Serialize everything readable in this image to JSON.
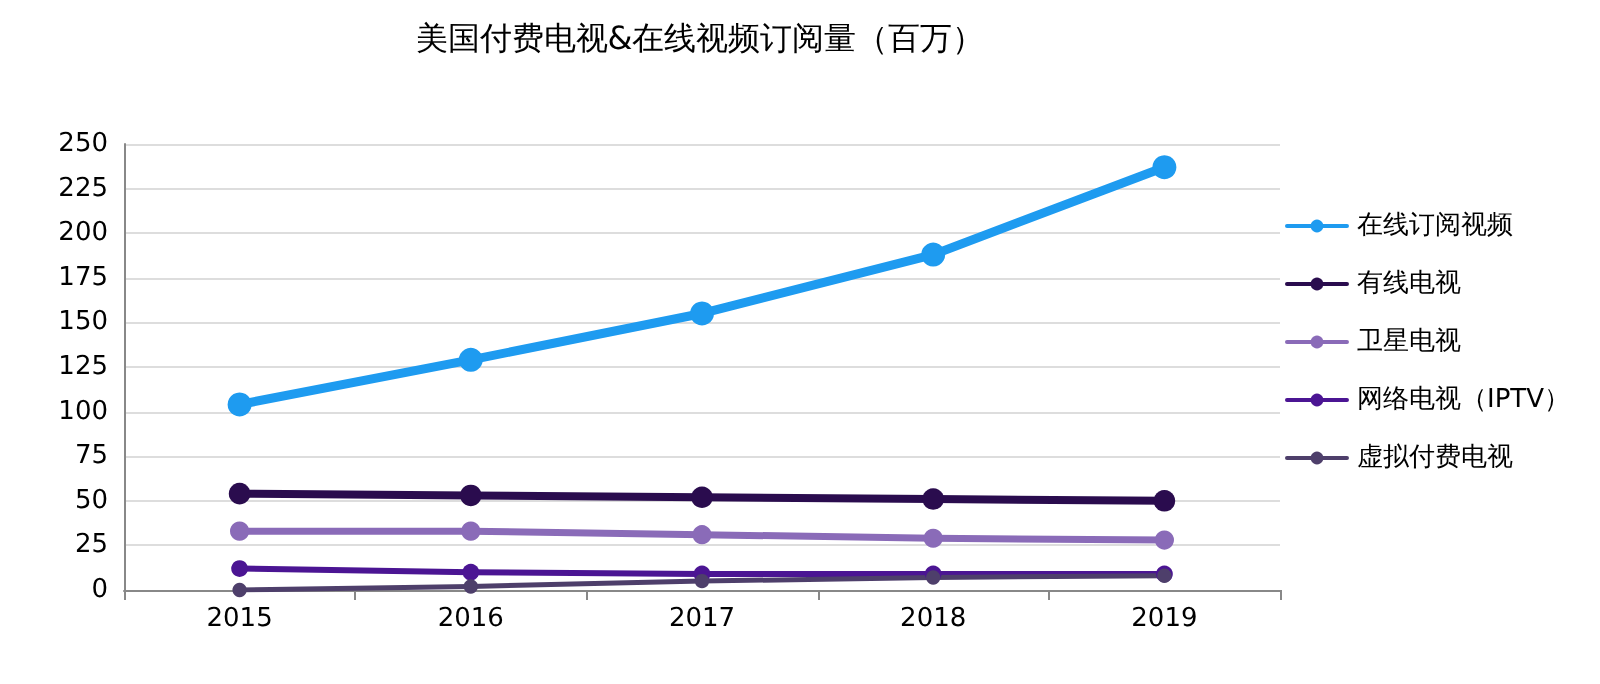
{
  "chart_data": {
    "type": "line",
    "title": "美国付费电视&在线视频订阅量（百万）",
    "categories": [
      "2015",
      "2016",
      "2017",
      "2018",
      "2019"
    ],
    "series": [
      {
        "name": "在线订阅视频",
        "color": "#1e9bf0",
        "values": [
          104,
          129,
          155,
          188,
          237
        ]
      },
      {
        "name": "有线电视",
        "color": "#2a0c4e",
        "values": [
          54,
          53,
          52,
          51,
          50
        ]
      },
      {
        "name": "卫星电视",
        "color": "#8a6bb8",
        "values": [
          33,
          33,
          31,
          29,
          28
        ]
      },
      {
        "name": "网络电视（IPTV）",
        "color": "#4b1593",
        "values": [
          12,
          10,
          9,
          9,
          9
        ]
      },
      {
        "name": "虚拟付费电视",
        "color": "#4e3f6b",
        "values": [
          0,
          2,
          5,
          7,
          8
        ]
      }
    ],
    "ylim": [
      0,
      250
    ],
    "yticks": [
      0,
      25,
      50,
      75,
      100,
      125,
      150,
      175,
      200,
      225,
      250
    ],
    "grid": "y",
    "legend": "right",
    "marker": "circle",
    "line_style": "solid"
  }
}
